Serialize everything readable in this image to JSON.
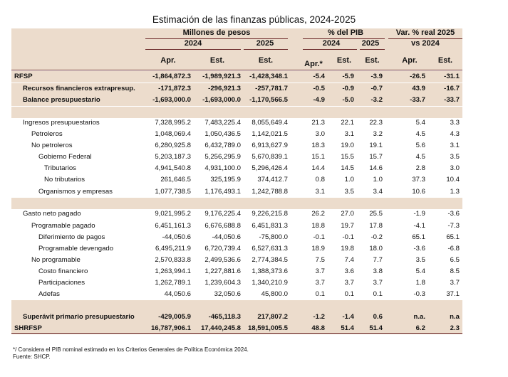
{
  "title": "Estimación de las finanzas públicas, 2024-2025",
  "header": {
    "group_mdp": "Millones de pesos",
    "group_pib": "% del PIB",
    "group_var": "Var. % real 2025",
    "group_var_line2": "vs 2024",
    "year_2024": "2024",
    "year_2025": "2025",
    "sub_apr": "Apr.",
    "sub_est": "Est.",
    "sub_apr_star": "Apr.*",
    "sub_est2": "Est.",
    "sub_est3": "Est.",
    "sub_apr2": "Apr.",
    "sub_est4": "Est."
  },
  "rows": [
    {
      "label": "RFSP",
      "bold": true,
      "indent": 0,
      "shade": true,
      "vals": [
        "-1,864,872.3",
        "-1,989,921.3",
        "-1,428,348.1",
        "-5.4",
        "-5.9",
        "-3.9",
        "-26.5",
        "-31.1"
      ]
    },
    {
      "label": "Recursos financieros extrapresup.",
      "bold": true,
      "indent": 1,
      "shade": true,
      "vals": [
        "-171,872.3",
        "-296,921.3",
        "-257,781.7",
        "-0.5",
        "-0.9",
        "-0.7",
        "43.9",
        "-16.7"
      ]
    },
    {
      "label": "Balance presupuestario",
      "bold": true,
      "indent": 1,
      "shade": true,
      "vals": [
        "-1,693,000.0",
        "-1,693,000.0",
        "-1,170,566.5",
        "-4.9",
        "-5.0",
        "-3.2",
        "-33.7",
        "-33.7"
      ]
    },
    {
      "label": "",
      "bold": false,
      "indent": 0,
      "shade": true,
      "vals": [
        "",
        "",
        "",
        "",
        "",
        "",
        "",
        ""
      ]
    },
    {
      "label": "Ingresos presupuestarios",
      "bold": false,
      "indent": 2,
      "shade": false,
      "vals": [
        "7,328,995.2",
        "7,483,225.4",
        "8,055,649.4",
        "21.3",
        "22.1",
        "22.3",
        "5.4",
        "3.3"
      ]
    },
    {
      "label": "Petroleros",
      "bold": false,
      "indent": 3,
      "shade": false,
      "vals": [
        "1,048,069.4",
        "1,050,436.5",
        "1,142,021.5",
        "3.0",
        "3.1",
        "3.2",
        "4.5",
        "4.3"
      ]
    },
    {
      "label": "No petroleros",
      "bold": false,
      "indent": 3,
      "shade": false,
      "vals": [
        "6,280,925.8",
        "6,432,789.0",
        "6,913,627.9",
        "18.3",
        "19.0",
        "19.1",
        "5.6",
        "3.1"
      ]
    },
    {
      "label": "Gobierno Federal",
      "bold": false,
      "indent": 4,
      "shade": false,
      "vals": [
        "5,203,187.3",
        "5,256,295.9",
        "5,670,839.1",
        "15.1",
        "15.5",
        "15.7",
        "4.5",
        "3.5"
      ]
    },
    {
      "label": "Tributarios",
      "bold": false,
      "indent": 5,
      "shade": false,
      "vals": [
        "4,941,540.8",
        "4,931,100.0",
        "5,296,426.4",
        "14.4",
        "14.5",
        "14.6",
        "2.8",
        "3.0"
      ]
    },
    {
      "label": "No tributarios",
      "bold": false,
      "indent": 5,
      "shade": false,
      "vals": [
        "261,646.5",
        "325,195.9",
        "374,412.7",
        "0.8",
        "1.0",
        "1.0",
        "37.3",
        "10.4"
      ]
    },
    {
      "label": "Organismos y empresas",
      "bold": false,
      "indent": 4,
      "shade": false,
      "vals": [
        "1,077,738.5",
        "1,176,493.1",
        "1,242,788.8",
        "3.1",
        "3.5",
        "3.4",
        "10.6",
        "1.3"
      ]
    },
    {
      "label": "",
      "bold": false,
      "indent": 0,
      "shade": true,
      "vals": [
        "",
        "",
        "",
        "",
        "",
        "",
        "",
        ""
      ]
    },
    {
      "label": "Gasto neto pagado",
      "bold": false,
      "indent": 2,
      "shade": false,
      "vals": [
        "9,021,995.2",
        "9,176,225.4",
        "9,226,215.8",
        "26.2",
        "27.0",
        "25.5",
        "-1.9",
        "-3.6"
      ]
    },
    {
      "label": "Programable pagado",
      "bold": false,
      "indent": 3,
      "shade": false,
      "vals": [
        "6,451,161.3",
        "6,676,688.8",
        "6,451,831.3",
        "18.8",
        "19.7",
        "17.8",
        "-4.1",
        "-7.3"
      ]
    },
    {
      "label": "Diferimiento de pagos",
      "bold": false,
      "indent": 4,
      "shade": false,
      "vals": [
        "-44,050.6",
        "-44,050.6",
        "-75,800.0",
        "-0.1",
        "-0.1",
        "-0.2",
        "65.1",
        "65.1"
      ]
    },
    {
      "label": "Programable devengado",
      "bold": false,
      "indent": 4,
      "shade": false,
      "vals": [
        "6,495,211.9",
        "6,720,739.4",
        "6,527,631.3",
        "18.9",
        "19.8",
        "18.0",
        "-3.6",
        "-6.8"
      ]
    },
    {
      "label": "No programable",
      "bold": false,
      "indent": 3,
      "shade": false,
      "vals": [
        "2,570,833.8",
        "2,499,536.6",
        "2,774,384.5",
        "7.5",
        "7.4",
        "7.7",
        "3.5",
        "6.5"
      ]
    },
    {
      "label": "Costo financiero",
      "bold": false,
      "indent": 4,
      "shade": false,
      "vals": [
        "1,263,994.1",
        "1,227,881.6",
        "1,388,373.6",
        "3.7",
        "3.6",
        "3.8",
        "5.4",
        "8.5"
      ]
    },
    {
      "label": "Participaciones",
      "bold": false,
      "indent": 4,
      "shade": false,
      "vals": [
        "1,262,789.1",
        "1,239,604.3",
        "1,340,210.9",
        "3.7",
        "3.7",
        "3.7",
        "1.8",
        "3.7"
      ]
    },
    {
      "label": "Adefas",
      "bold": false,
      "indent": 4,
      "shade": false,
      "vals": [
        "44,050.6",
        "32,050.6",
        "45,800.0",
        "0.1",
        "0.1",
        "0.1",
        "-0.3",
        "37.1"
      ]
    },
    {
      "label": "",
      "bold": false,
      "indent": 0,
      "shade": true,
      "vals": [
        "",
        "",
        "",
        "",
        "",
        "",
        "",
        ""
      ]
    },
    {
      "label": "Superávit primario presupuestario",
      "bold": true,
      "indent": 1,
      "shade": true,
      "vals": [
        "-429,005.9",
        "-465,118.3",
        "217,807.2",
        "-1.2",
        "-1.4",
        "0.6",
        "n.a.",
        "n.a"
      ]
    },
    {
      "label": "SHRFSP",
      "bold": true,
      "indent": 0,
      "shade": true,
      "vals": [
        "16,787,906.1",
        "17,440,245.8",
        "18,591,005.5",
        "48.8",
        "51.4",
        "51.4",
        "6.2",
        "2.3"
      ]
    }
  ],
  "footnote1": "*/ Considera el PIB nominal estimado en los Criterios Generales de Política Económica 2024.",
  "footnote2": "Fuente: SHCP.",
  "colors": {
    "band": "#ecdccc",
    "rule": "#6d2b2b"
  }
}
